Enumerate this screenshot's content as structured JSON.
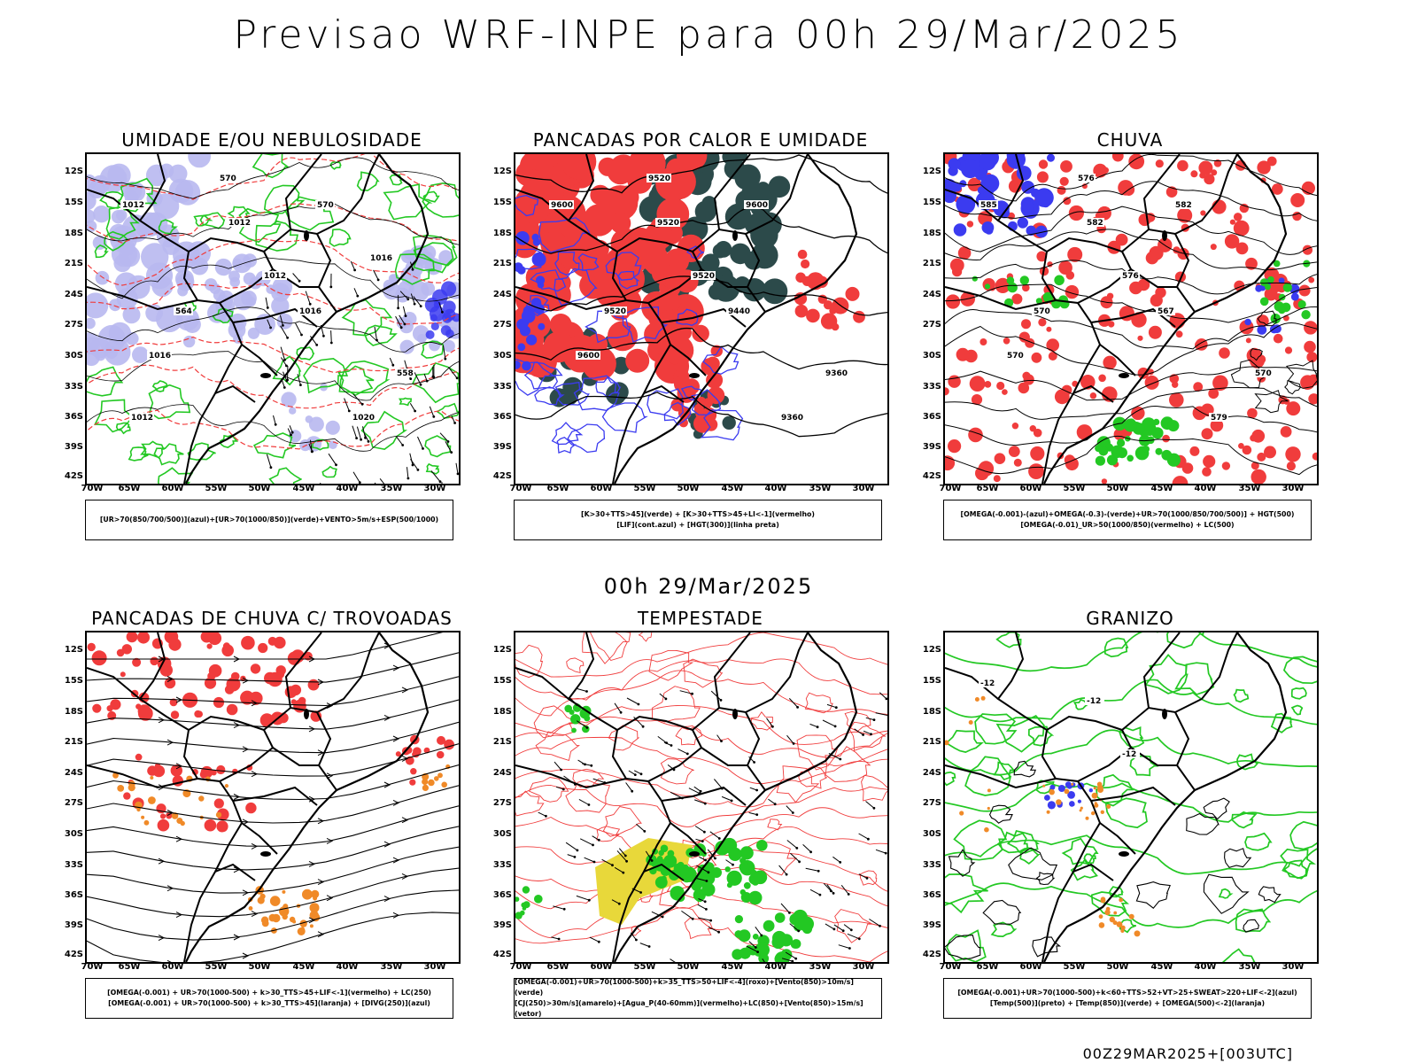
{
  "title": "Previsao WRF-INPE  para 00h 29/Mar/2025",
  "subtitle": "00h 29/Mar/2025",
  "footer": "00Z29MAR2025+[003UTC]",
  "axes": {
    "lat": [
      "12S",
      "15S",
      "18S",
      "21S",
      "24S",
      "27S",
      "30S",
      "33S",
      "36S",
      "39S",
      "42S"
    ],
    "lon": [
      "70W",
      "65W",
      "60W",
      "55W",
      "50W",
      "45W",
      "40W",
      "35W",
      "30W"
    ]
  },
  "colors": {
    "blue": "#3b3bf0",
    "lavender": "#b8b8f0",
    "red": "#f03c3c",
    "green": "#23c823",
    "dark_teal": "#2c4a4a",
    "orange": "#f08a28",
    "yellow": "#e8d83a"
  },
  "panels": [
    {
      "title": "UMIDADE E/OU NEBULOSIDADE",
      "legend": [
        "[UR>70(850/700/500)](azul)+[UR>70(1000/850)](verde)+VENTO>5m/s+ESP(500/1000)"
      ],
      "contour_labels": [
        "1012",
        "1012",
        "1012",
        "1016",
        "1016",
        "1020",
        "570",
        "570",
        "564",
        "558",
        "1012",
        "1016"
      ]
    },
    {
      "title": "PANCADAS POR CALOR E UMIDADE",
      "legend": [
        "[K>30+TTS>45](verde) + [K>30+TTS>45+LI<-1](vermelho)",
        "[LIF](cont.azul) + [HGT(300)](linha preta)"
      ],
      "contour_labels": [
        "9600",
        "9520",
        "9520",
        "9600",
        "9440",
        "9360",
        "9520",
        "9600",
        "9520",
        "9360"
      ]
    },
    {
      "title": "CHUVA",
      "legend": [
        "[OMEGA(-0.001)-(azul)+OMEGA(-0.3)-(verde)+UR>70(1000/850/700/500)] + HGT(500)",
        "[OMEGA(-0.01)_UR>50(1000/850)(vermelho) + LC(500)"
      ],
      "contour_labels": [
        "585",
        "582",
        "576",
        "570",
        "567",
        "579",
        "576",
        "582",
        "570",
        "570"
      ]
    },
    {
      "title": "PANCADAS DE CHUVA C/ TROVOADAS",
      "legend": [
        "[OMEGA(-0.001) + UR>70(1000-500) + k>30_TTS>45+LIF<-1](vermelho) + LC(250)",
        "[OMEGA(-0.001) + UR>70(1000-500) + k>30_TTS>45](laranja) + [DIVG(250)](azul)"
      ],
      "contour_labels": []
    },
    {
      "title": "TEMPESTADE",
      "legend": [
        "[OMEGA(-0.001)+UR>70(1000-500)+k>35_TTS>50+LIF<-4](roxo)+[Vento(850)>10m/s](verde)",
        "[CJ(250)>30m/s](amarelo)+[Agua_P(40-60mm)](vermelho)+LC(850)+[Vento(850)>15m/s](vetor)"
      ],
      "contour_labels": []
    },
    {
      "title": "GRANIZO",
      "legend": [
        "[OMEGA(-0.001)+UR>70(1000-500)+k<60+TTS>52+VT>25+SWEAT>220+LIF<-2](azul)",
        "[Temp(500)](preto) + [Temp(850)](verde) + [OMEGA(500)<-2](laranja)"
      ],
      "contour_labels": [
        "-12",
        "-12",
        "-12"
      ]
    }
  ]
}
